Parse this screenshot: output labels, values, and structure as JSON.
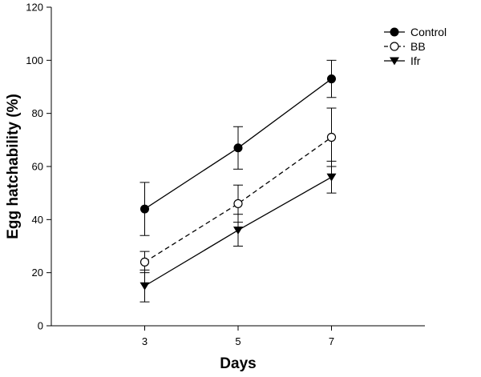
{
  "chart_data": {
    "type": "line",
    "title": "",
    "xlabel": "Days",
    "ylabel": "Egg hatchability (%)",
    "x": [
      3,
      5,
      7
    ],
    "x_ticks": [
      "3",
      "5",
      "7"
    ],
    "xlim": [
      1,
      9
    ],
    "ylim": [
      0,
      120
    ],
    "y_ticks": [
      "0",
      "20",
      "40",
      "60",
      "80",
      "100",
      "120"
    ],
    "grid": false,
    "legend_position": "top-right",
    "series": [
      {
        "name": "Control",
        "values": [
          44,
          67,
          93
        ],
        "errors": [
          10,
          8,
          7
        ],
        "marker": "circle-filled",
        "line": "solid",
        "color": "#000000"
      },
      {
        "name": "BB",
        "values": [
          24,
          46,
          71
        ],
        "errors": [
          4,
          7,
          11
        ],
        "marker": "circle-open",
        "line": "dashed",
        "color": "#000000"
      },
      {
        "name": "Ifr",
        "values": [
          15,
          36,
          56
        ],
        "errors": [
          6,
          6,
          6
        ],
        "marker": "triangle-down",
        "line": "solid",
        "color": "#000000"
      }
    ]
  }
}
